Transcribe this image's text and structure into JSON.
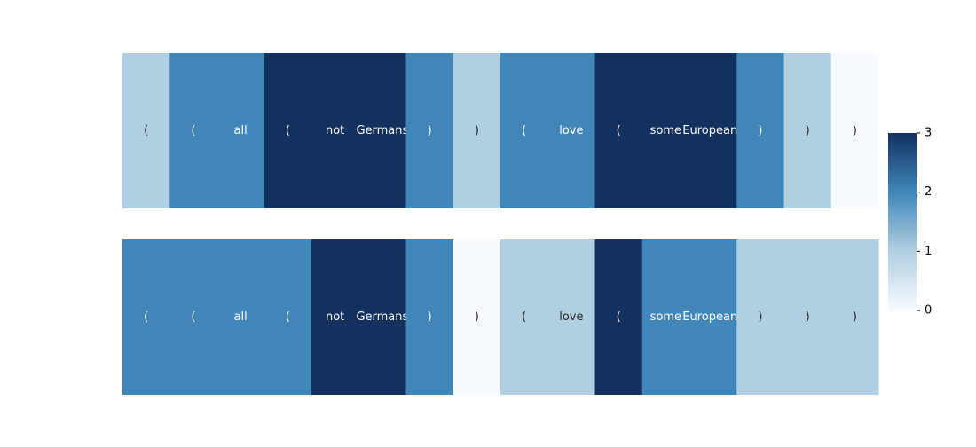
{
  "chart_data": {
    "type": "heatmap",
    "colormap": "Blues",
    "tokens": [
      "(",
      "(",
      "all",
      "(",
      "not",
      "Germans",
      ")",
      ")",
      "(",
      "love",
      "(",
      "some",
      "Europeans",
      ")",
      ")",
      ")"
    ],
    "rows": [
      {
        "values": [
          1,
          2,
          2,
          3,
          3,
          3,
          2,
          1,
          2,
          2,
          3,
          3,
          3,
          2,
          1,
          0
        ]
      },
      {
        "values": [
          2,
          2,
          2,
          2,
          3,
          3,
          2,
          0,
          1,
          1,
          3,
          2,
          2,
          1,
          1,
          1
        ]
      }
    ],
    "colorbar": {
      "min": 0,
      "max": 3,
      "ticks": [
        "0",
        "1",
        "2",
        "3"
      ]
    },
    "colors": {
      "0": "#f7fbff",
      "1": "#b0cfe2",
      "2": "#4186b8",
      "3": "#12315f"
    }
  }
}
